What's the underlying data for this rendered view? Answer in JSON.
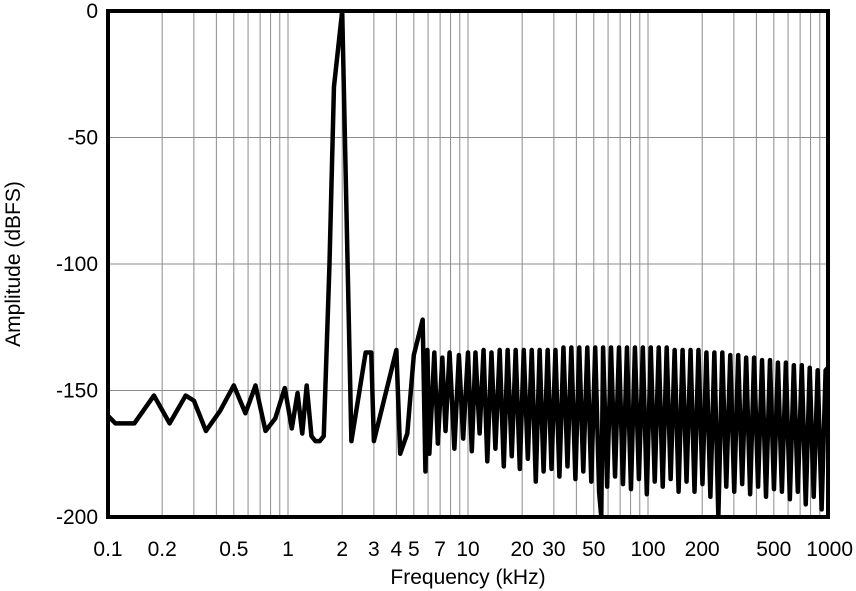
{
  "chart_data": {
    "type": "line",
    "title": "",
    "xlabel": "Frequency (kHz)",
    "ylabel": "Amplitude (dBFS)",
    "xscale": "log",
    "xlim": [
      0.1,
      1000
    ],
    "ylim": [
      -200,
      0
    ],
    "grid": true,
    "legend": "none",
    "x_ticks": [
      {
        "value": 0.1,
        "label": "0.1"
      },
      {
        "value": 0.2,
        "label": "0.2"
      },
      {
        "value": 0.5,
        "label": "0.5"
      },
      {
        "value": 1,
        "label": "1"
      },
      {
        "value": 2,
        "label": "2"
      },
      {
        "value": 3,
        "label": "3"
      },
      {
        "value": 4,
        "label": "4"
      },
      {
        "value": 5,
        "label": "5"
      },
      {
        "value": 7,
        "label": "7"
      },
      {
        "value": 10,
        "label": "10"
      },
      {
        "value": 20,
        "label": "20"
      },
      {
        "value": 30,
        "label": "30"
      },
      {
        "value": 50,
        "label": "50"
      },
      {
        "value": 100,
        "label": "100"
      },
      {
        "value": 200,
        "label": "200"
      },
      {
        "value": 500,
        "label": "500"
      },
      {
        "value": 1000,
        "label": "1000"
      }
    ],
    "y_ticks": [
      {
        "value": 0,
        "label": "0"
      },
      {
        "value": -50,
        "label": "-50"
      },
      {
        "value": -100,
        "label": "-100"
      },
      {
        "value": -150,
        "label": "-150"
      },
      {
        "value": -200,
        "label": "-200"
      }
    ],
    "series": [
      {
        "line_color": "#000000",
        "x": [
          0.1,
          0.11,
          0.14,
          0.18,
          0.22,
          0.27,
          0.3,
          0.35,
          0.42,
          0.5,
          0.58,
          0.66,
          0.75,
          0.85,
          0.96,
          1.05,
          1.13,
          1.2,
          1.27,
          1.35,
          1.42,
          1.5,
          1.58,
          1.7,
          1.8,
          2.0,
          2.25,
          2.7,
          2.9,
          3.0,
          4.0,
          4.2,
          4.6,
          5.0,
          5.6,
          5.8,
          5.95,
          6.1,
          6.5,
          6.8,
          7.2,
          7.5,
          7.9,
          8.4,
          8.9,
          9.4,
          10.0,
          10.5,
          11,
          11.6,
          12.2,
          12.8,
          13.5,
          14.2,
          15,
          15.8,
          16.6,
          17.5,
          18.4,
          19.4,
          20.4,
          21.5,
          22.6,
          23.8,
          25,
          26.3,
          27.7,
          29.1,
          30.6,
          32.2,
          33.9,
          35.7,
          37.5,
          39.5,
          41.5,
          43.7,
          46,
          48.4,
          50.9,
          53.5,
          55,
          56.3,
          59.3,
          62.3,
          65.6,
          69,
          72.6,
          76.4,
          80.4,
          84.6,
          89,
          93.6,
          98.5,
          103.6,
          109,
          114.7,
          120.7,
          127,
          133.6,
          140.6,
          147.9,
          155.6,
          163.7,
          172.3,
          181.3,
          190.7,
          200.7,
          211.1,
          222.1,
          233.7,
          245.9,
          258.7,
          272.2,
          286.4,
          301.3,
          317,
          333.6,
          351,
          369.3,
          388.5,
          408.8,
          430.1,
          452.5,
          476.1,
          500.9,
          527,
          554.5,
          583.4,
          613.8,
          645.8,
          679.5,
          714.9,
          752.2,
          791.4,
          832.7,
          876.1,
          921.8,
          969.9,
          1000
        ],
        "y": [
          -160,
          -163,
          -163,
          -152,
          -163,
          -152,
          -154,
          -166,
          -158,
          -148,
          -159,
          -148,
          -166,
          -161,
          -149,
          -165,
          -151,
          -167,
          -148,
          -168,
          -170,
          -170,
          -168,
          -100,
          -30,
          0,
          -170,
          -135,
          -135,
          -170,
          -134,
          -175,
          -167,
          -136,
          -122,
          -182,
          -134,
          -175,
          -135,
          -171,
          -137,
          -166,
          -135,
          -173,
          -136,
          -169,
          -135,
          -174,
          -135,
          -167,
          -134,
          -178,
          -135,
          -173,
          -134,
          -180,
          -134,
          -176,
          -134,
          -181,
          -134,
          -177,
          -134,
          -186,
          -134,
          -182,
          -134,
          -181,
          -134,
          -184,
          -133,
          -180,
          -133,
          -185,
          -133,
          -182,
          -133,
          -186,
          -133,
          -190,
          -200,
          -133,
          -188,
          -133,
          -184,
          -133,
          -187,
          -133,
          -189,
          -133,
          -185,
          -133,
          -191,
          -133,
          -186,
          -133,
          -188,
          -133,
          -185,
          -134,
          -190,
          -134,
          -186,
          -134,
          -190,
          -134,
          -187,
          -135,
          -192,
          -135,
          -200,
          -135,
          -188,
          -136,
          -190,
          -136,
          -187,
          -137,
          -191,
          -137,
          -188,
          -138,
          -192,
          -138,
          -189,
          -139,
          -190,
          -139,
          -193,
          -140,
          -190,
          -140,
          -195,
          -141,
          -192,
          -142,
          -197,
          -142,
          -141
        ]
      }
    ]
  }
}
